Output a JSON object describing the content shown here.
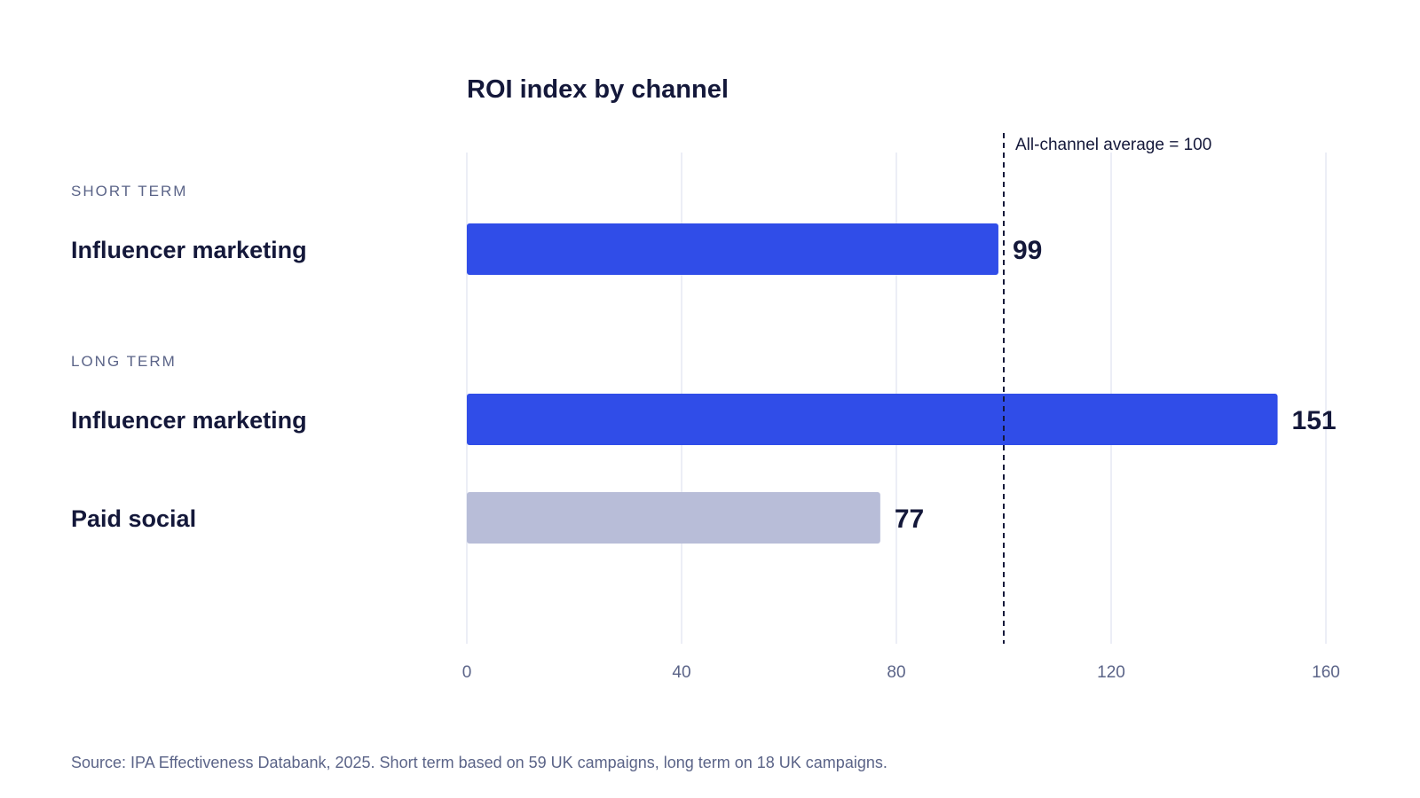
{
  "chart_data": {
    "type": "bar",
    "orientation": "horizontal",
    "title": "ROI index by channel",
    "xlim": [
      0,
      160
    ],
    "xticks": [
      0,
      40,
      80,
      120,
      160
    ],
    "grid": true,
    "groups": [
      {
        "label": "SHORT TERM",
        "bars": [
          {
            "category": "Influencer marketing",
            "value": 99,
            "color": "#304de8"
          }
        ]
      },
      {
        "label": "LONG TERM",
        "bars": [
          {
            "category": "Influencer marketing",
            "value": 151,
            "color": "#304de8"
          },
          {
            "category": "Paid social",
            "value": 77,
            "color": "#b8bdd8"
          }
        ]
      }
    ],
    "reference_line": {
      "value": 100,
      "label": "All-channel average = 100"
    }
  },
  "source": "Source: IPA Effectiveness Databank, 2025. Short term based on 59 UK campaigns, long term on 18 UK campaigns."
}
